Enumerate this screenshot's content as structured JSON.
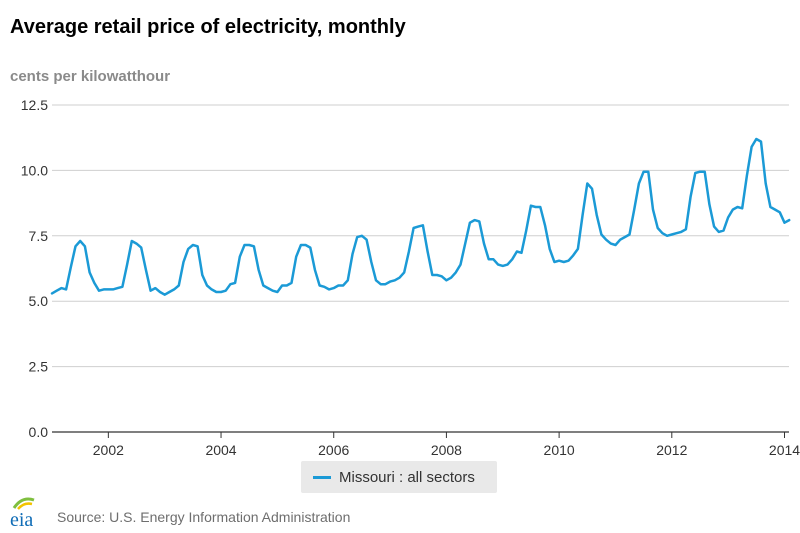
{
  "header": {
    "title": "Average retail price of electricity, monthly",
    "unit_label": "cents per kilowatthour"
  },
  "legend": {
    "label": "Missouri : all sectors"
  },
  "footer": {
    "logo_text": "eia",
    "source": "Source: U.S. Energy Information Administration"
  },
  "colors": {
    "series": "#1b9ad6",
    "grid": "#cfcfcf",
    "axis": "#333333",
    "logo_blue": "#0f6cb6",
    "logo_green": "#7fbf3f",
    "logo_yellow": "#f2c300"
  },
  "chart_data": {
    "type": "line",
    "title": "Average retail price of electricity, monthly",
    "ylabel": "cents per kilowatthour",
    "xlabel": "",
    "ylim": [
      0,
      12.5
    ],
    "xlim": [
      2001.0,
      2014.08
    ],
    "y_ticks": [
      "0.0",
      "2.5",
      "5.0",
      "7.5",
      "10.0",
      "12.5"
    ],
    "x_ticks": [
      "2002",
      "2004",
      "2006",
      "2008",
      "2010",
      "2012",
      "2014"
    ],
    "grid": true,
    "legend_position": "bottom-center",
    "series": [
      {
        "name": "Missouri : all sectors",
        "start_year": 2001,
        "values": [
          5.3,
          5.4,
          5.5,
          5.45,
          6.3,
          7.1,
          7.3,
          7.1,
          6.1,
          5.7,
          5.4,
          5.45,
          5.45,
          5.45,
          5.5,
          5.55,
          6.4,
          7.3,
          7.2,
          7.05,
          6.2,
          5.4,
          5.5,
          5.35,
          5.25,
          5.35,
          5.45,
          5.6,
          6.5,
          7.0,
          7.15,
          7.1,
          6.0,
          5.6,
          5.45,
          5.35,
          5.35,
          5.4,
          5.65,
          5.7,
          6.7,
          7.15,
          7.15,
          7.1,
          6.2,
          5.6,
          5.5,
          5.4,
          5.35,
          5.6,
          5.6,
          5.7,
          6.7,
          7.15,
          7.15,
          7.05,
          6.2,
          5.6,
          5.55,
          5.45,
          5.5,
          5.6,
          5.6,
          5.8,
          6.8,
          7.45,
          7.5,
          7.35,
          6.5,
          5.8,
          5.65,
          5.65,
          5.75,
          5.8,
          5.9,
          6.1,
          6.9,
          7.8,
          7.85,
          7.9,
          6.9,
          6.0,
          6.0,
          5.95,
          5.8,
          5.9,
          6.1,
          6.4,
          7.2,
          8.0,
          8.1,
          8.05,
          7.2,
          6.6,
          6.6,
          6.4,
          6.35,
          6.4,
          6.6,
          6.9,
          6.85,
          7.7,
          8.65,
          8.6,
          8.6,
          7.9,
          7.0,
          6.5,
          6.55,
          6.5,
          6.55,
          6.75,
          7.0,
          8.3,
          9.5,
          9.3,
          8.3,
          7.55,
          7.35,
          7.2,
          7.15,
          7.35,
          7.45,
          7.55,
          8.5,
          9.5,
          9.95,
          9.95,
          8.5,
          7.8,
          7.6,
          7.5,
          7.55,
          7.6,
          7.65,
          7.75,
          9.0,
          9.9,
          9.95,
          9.95,
          8.7,
          7.85,
          7.65,
          7.7,
          8.2,
          8.5,
          8.6,
          8.55,
          9.8,
          10.9,
          11.2,
          11.1,
          9.5,
          8.6,
          8.5,
          8.4,
          8.0,
          8.1
        ]
      }
    ]
  }
}
